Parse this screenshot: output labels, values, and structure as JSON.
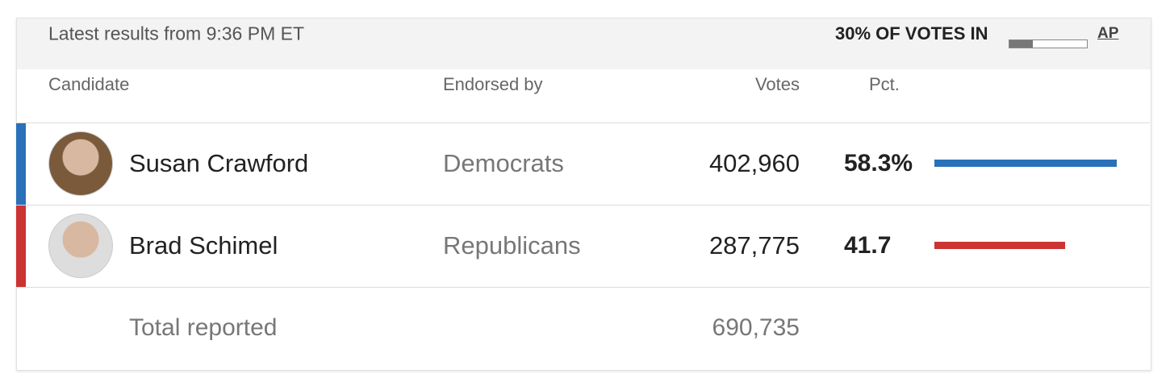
{
  "header": {
    "timestamp": "Latest results from 9:36 PM ET",
    "reporting": "30% OF VOTES IN",
    "reporting_pct": 30,
    "source": "AP"
  },
  "table": {
    "columns": [
      "Candidate",
      "Endorsed by",
      "Votes",
      "Pct."
    ],
    "rows": [
      {
        "name": "Susan Crawford",
        "endorsed": "Democrats",
        "votes": "402,960",
        "pct": 58.3,
        "pct_label": "58.3%",
        "color": "#2a71b9"
      },
      {
        "name": "Brad Schimel",
        "endorsed": "Republicans",
        "votes": "287,775",
        "pct": 41.7,
        "color": "#cc3333"
      }
    ],
    "total": {
      "label": "Total reported",
      "votes": "690,735"
    }
  }
}
